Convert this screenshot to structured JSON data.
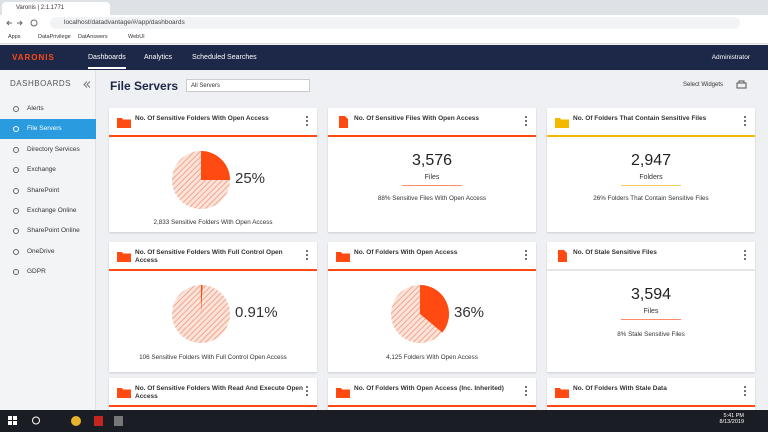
{
  "browser": {
    "tab_title": "Varonis | 2.1.1771",
    "url": "localhost/datadvantage/#/app/dashboards",
    "bookmarks": [
      "Apps",
      "DataPrivilege",
      "DatAnswers",
      "WebUI"
    ]
  },
  "nav": {
    "logo": "VARONIS",
    "items": [
      "Dashboards",
      "Analytics",
      "Scheduled Searches"
    ],
    "user": "Administrator"
  },
  "sidebar": {
    "title": "DASHBOARDS",
    "items": [
      "Alerts",
      "File Servers",
      "Directory Services",
      "Exchange",
      "SharePoint",
      "Exchange Online",
      "SharePoint Online",
      "OneDrive",
      "GDPR"
    ]
  },
  "page": {
    "title": "File Servers",
    "filter": "All Servers",
    "select_widgets": "Select Widgets"
  },
  "widgets": [
    {
      "title": "No. Of Sensitive Folders With Open Access",
      "icon": "folder",
      "color": "#ff4a12",
      "pie": {
        "value": 25,
        "label": "25%"
      },
      "caption": "2,833 Sensitive Folders With Open Access"
    },
    {
      "title": "No. Of Sensitive Files With Open Access",
      "icon": "file",
      "color": "#ff4a12",
      "count": "3,576",
      "unit": "Files",
      "caption": "88% Sensitive Files With Open Access"
    },
    {
      "title": "No. Of Folders That Contain Sensitive Files",
      "icon": "folder",
      "color": "#f5b800",
      "count": "2,947",
      "unit": "Folders",
      "caption": "26% Folders That Contain Sensitive Files"
    },
    {
      "title": "No. Of Sensitive Folders With Full Control Open Access",
      "icon": "folder",
      "color": "#ff4a12",
      "pie": {
        "value": 0.91,
        "label": "0.91%"
      },
      "caption": "106 Sensitive Folders With Full Control Open Access"
    },
    {
      "title": "No. Of Folders With Open Access",
      "icon": "folder",
      "color": "#ff4a12",
      "pie": {
        "value": 36,
        "label": "36%"
      },
      "caption": "4,125 Folders With Open Access"
    },
    {
      "title": "No. Of Stale Sensitive Files",
      "icon": "file",
      "color": "#ff4a12",
      "count": "3,594",
      "unit": "Files",
      "caption": "8% Stale Sensitive Files"
    },
    {
      "title": "No. Of Sensitive Folders With Read And Execute Open Access",
      "icon": "folder",
      "color": "#ff4a12"
    },
    {
      "title": "No. Of Folders With Open Access (Inc. Inherited)",
      "icon": "folder",
      "color": "#ff4a12"
    },
    {
      "title": "No. Of Folders With Stale Data",
      "icon": "folder",
      "color": "#ff4a12"
    }
  ],
  "taskbar": {
    "time": "5:41 PM",
    "date": "8/13/2019"
  }
}
